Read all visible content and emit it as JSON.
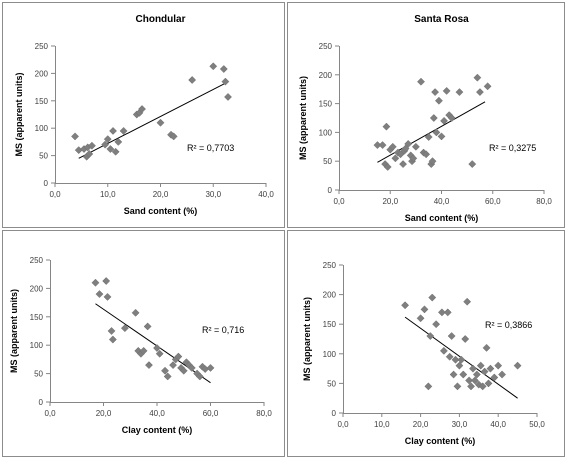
{
  "chart_data": [
    {
      "type": "scatter",
      "title": "Chondular",
      "xlabel": "Sand content (%)",
      "ylabel": "MS (apparent units)",
      "xlim": [
        0,
        40
      ],
      "ylim": [
        0,
        250
      ],
      "xticks": [
        "0,0",
        "10,0",
        "20,0",
        "30,0",
        "40,0"
      ],
      "yticks": [
        "0",
        "50",
        "100",
        "150",
        "200",
        "250"
      ],
      "r2_label": "R² = 0,7703",
      "trendline": {
        "x": [
          4.5,
          32.5
        ],
        "y": [
          45,
          183
        ]
      },
      "points": [
        [
          3.8,
          85
        ],
        [
          4.5,
          60
        ],
        [
          5.5,
          62
        ],
        [
          6.0,
          48
        ],
        [
          6.2,
          65
        ],
        [
          6.5,
          53
        ],
        [
          7.0,
          68
        ],
        [
          9.5,
          70
        ],
        [
          10.0,
          80
        ],
        [
          10.5,
          62
        ],
        [
          11.0,
          95
        ],
        [
          11.5,
          57
        ],
        [
          12.0,
          75
        ],
        [
          13.0,
          95
        ],
        [
          15.5,
          125
        ],
        [
          16.0,
          128
        ],
        [
          16.5,
          135
        ],
        [
          20.0,
          110
        ],
        [
          22.0,
          88
        ],
        [
          22.5,
          85
        ],
        [
          26.0,
          188
        ],
        [
          30.0,
          213
        ],
        [
          32.0,
          208
        ],
        [
          32.3,
          185
        ],
        [
          32.8,
          157
        ]
      ],
      "grid": false
    },
    {
      "type": "scatter",
      "title": "Santa Rosa",
      "xlabel": "Sand content (%)",
      "ylabel": "MS (apparent units)",
      "xlim": [
        0,
        80
      ],
      "ylim": [
        0,
        250
      ],
      "xticks": [
        "0,0",
        "20,0",
        "40,0",
        "60,0",
        "80,0"
      ],
      "yticks": [
        "0",
        "50",
        "100",
        "150",
        "200",
        "250"
      ],
      "r2_label": "R² = 0,3275",
      "trendline": {
        "x": [
          15,
          57
        ],
        "y": [
          48,
          153
        ]
      },
      "points": [
        [
          15,
          78
        ],
        [
          17,
          78
        ],
        [
          18,
          45
        ],
        [
          18.5,
          110
        ],
        [
          19,
          40
        ],
        [
          20,
          70
        ],
        [
          21,
          75
        ],
        [
          22,
          55
        ],
        [
          23,
          65
        ],
        [
          24,
          62
        ],
        [
          25,
          45
        ],
        [
          25.5,
          68
        ],
        [
          26,
          72
        ],
        [
          27,
          80
        ],
        [
          28,
          60
        ],
        [
          28.5,
          50
        ],
        [
          29,
          55
        ],
        [
          30,
          75
        ],
        [
          32,
          188
        ],
        [
          33,
          65
        ],
        [
          34,
          62
        ],
        [
          35,
          92
        ],
        [
          36,
          45
        ],
        [
          36.5,
          50
        ],
        [
          37,
          125
        ],
        [
          37.5,
          170
        ],
        [
          38,
          100
        ],
        [
          39,
          155
        ],
        [
          40,
          93
        ],
        [
          41,
          120
        ],
        [
          42,
          172
        ],
        [
          43,
          130
        ],
        [
          44,
          125
        ],
        [
          47,
          170
        ],
        [
          52,
          45
        ],
        [
          54,
          195
        ],
        [
          55,
          170
        ],
        [
          58,
          180
        ]
      ],
      "grid": false
    },
    {
      "type": "scatter",
      "title": "",
      "xlabel": "Clay content (%)",
      "ylabel": "MS (apparent units)",
      "xlim": [
        0,
        80
      ],
      "ylim": [
        0,
        250
      ],
      "xticks": [
        "0,0",
        "20,0",
        "40,0",
        "60,0",
        "80,0"
      ],
      "yticks": [
        "0",
        "50",
        "100",
        "150",
        "200",
        "250"
      ],
      "r2_label": "R² = 0,716",
      "trendline": {
        "x": [
          17,
          60
        ],
        "y": [
          173,
          34
        ]
      },
      "points": [
        [
          17,
          210
        ],
        [
          18.5,
          190
        ],
        [
          21,
          213
        ],
        [
          21.5,
          185
        ],
        [
          23,
          125
        ],
        [
          23.5,
          110
        ],
        [
          28,
          130
        ],
        [
          32,
          157
        ],
        [
          33,
          90
        ],
        [
          34,
          85
        ],
        [
          35,
          90
        ],
        [
          36.5,
          133
        ],
        [
          37,
          65
        ],
        [
          40,
          95
        ],
        [
          41,
          85
        ],
        [
          43,
          55
        ],
        [
          44,
          45
        ],
        [
          46,
          65
        ],
        [
          47,
          75
        ],
        [
          48,
          80
        ],
        [
          49,
          60
        ],
        [
          50,
          55
        ],
        [
          51,
          70
        ],
        [
          52,
          65
        ],
        [
          53,
          60
        ],
        [
          55,
          50
        ],
        [
          56,
          45
        ],
        [
          57,
          62
        ],
        [
          58,
          58
        ],
        [
          60,
          60
        ]
      ],
      "grid": false
    },
    {
      "type": "scatter",
      "title": "",
      "xlabel": "Clay content (%)",
      "ylabel": "MS (apparent units)",
      "xlim": [
        0,
        50
      ],
      "ylim": [
        0,
        250
      ],
      "xticks": [
        "0,0",
        "10,0",
        "20,0",
        "30,0",
        "40,0",
        "50,0"
      ],
      "yticks": [
        "0",
        "50",
        "100",
        "150",
        "200",
        "250"
      ],
      "r2_label": "R² = 0,3866",
      "trendline": {
        "x": [
          16,
          45
        ],
        "y": [
          162,
          25
        ]
      },
      "points": [
        [
          16,
          182
        ],
        [
          20,
          160
        ],
        [
          21,
          175
        ],
        [
          22,
          45
        ],
        [
          22.5,
          130
        ],
        [
          23,
          195
        ],
        [
          24,
          150
        ],
        [
          25.5,
          170
        ],
        [
          26,
          105
        ],
        [
          27,
          170
        ],
        [
          27.5,
          95
        ],
        [
          28,
          130
        ],
        [
          28.5,
          65
        ],
        [
          29,
          90
        ],
        [
          29.5,
          45
        ],
        [
          30,
          80
        ],
        [
          30.5,
          90
        ],
        [
          31,
          65
        ],
        [
          31.5,
          125
        ],
        [
          32,
          188
        ],
        [
          32.5,
          55
        ],
        [
          33,
          45
        ],
        [
          33.5,
          75
        ],
        [
          34,
          55
        ],
        [
          34.5,
          65
        ],
        [
          35,
          48
        ],
        [
          35.5,
          80
        ],
        [
          36,
          45
        ],
        [
          36.5,
          70
        ],
        [
          37,
          110
        ],
        [
          37.5,
          50
        ],
        [
          38,
          75
        ],
        [
          39,
          60
        ],
        [
          40,
          80
        ],
        [
          41,
          65
        ],
        [
          45,
          80
        ]
      ],
      "grid": false
    }
  ]
}
